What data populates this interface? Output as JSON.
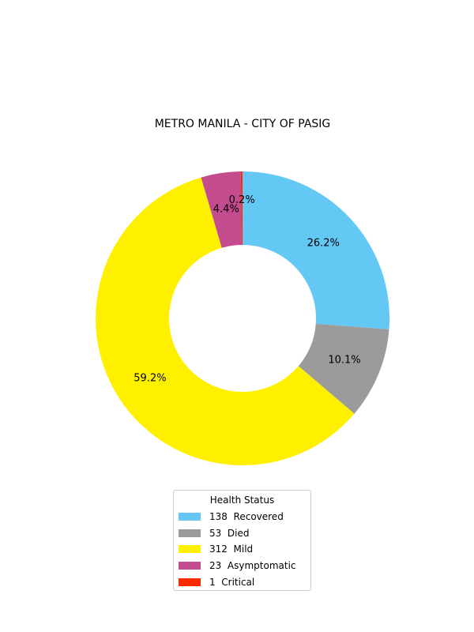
{
  "chart_data": {
    "type": "pie",
    "title": "METRO MANILA - CITY OF PASIG",
    "donut": true,
    "slices": [
      {
        "count": "138",
        "label": "Recovered",
        "value": 138,
        "percent_label": "26.2%",
        "color": "#64c8f4"
      },
      {
        "count": "53",
        "label": "Died",
        "value": 53,
        "percent_label": "10.1%",
        "color": "#9b9b9b"
      },
      {
        "count": "312",
        "label": "Mild",
        "value": 312,
        "percent_label": "59.2%",
        "color": "#fff000"
      },
      {
        "count": "23",
        "label": "Asymptomatic",
        "value": 23,
        "percent_label": "4.4%",
        "color": "#c34b8e"
      },
      {
        "count": "1",
        "label": "Critical",
        "value": 1,
        "percent_label": "0.2%",
        "color": "#ff2a00"
      }
    ],
    "legend": {
      "title": "Health Status",
      "placement": "bottom"
    }
  }
}
